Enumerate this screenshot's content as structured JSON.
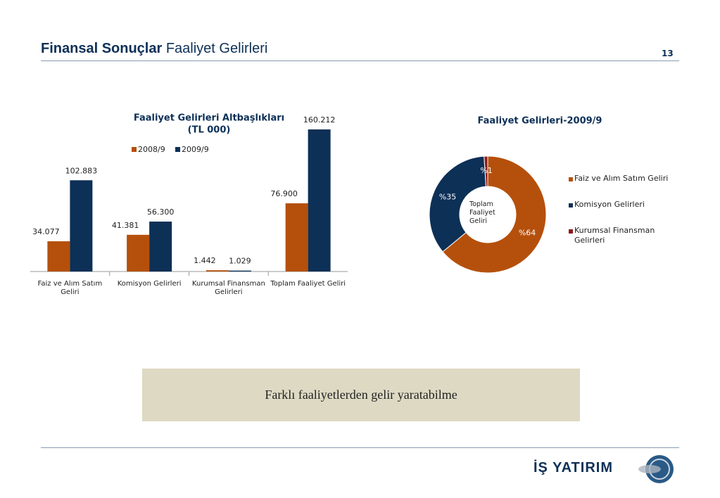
{
  "header": {
    "title_bold": "Finansal Sonuçlar",
    "title_rest": "Faaliyet Gelirleri",
    "page_number": "13"
  },
  "chart_data": [
    {
      "type": "bar",
      "title": "Faaliyet Gelirleri Altbaşlıkları",
      "subtitle": "(TL 000)",
      "categories": [
        "Faiz ve Alım Satım Geliri",
        "Komisyon Gelirleri",
        "Kurumsal Finansman Gelirleri",
        "Toplam Faaliyet Geliri"
      ],
      "series": [
        {
          "name": "2008/9",
          "color": "#b5500c",
          "values": [
            34077,
            41381,
            1442,
            76900
          ],
          "value_labels": [
            "34.077",
            "41.381",
            "1.442",
            "76.900"
          ]
        },
        {
          "name": "2009/9",
          "color": "#0d3057",
          "values": [
            102883,
            56300,
            1029,
            160212
          ],
          "value_labels": [
            "102.883",
            "56.300",
            "1.029",
            "160.212"
          ]
        }
      ]
    },
    {
      "type": "pie",
      "title": "Faaliyet Gelirleri-2009/9",
      "center_label": "Toplam Faaliyet Geliri",
      "categories": [
        "Faiz ve Alım Satım Geliri",
        "Komisyon Gelirleri",
        "Kurumsal Finansman Gelirleri"
      ],
      "values": [
        64,
        35,
        1
      ],
      "value_labels": [
        "%64",
        "%35",
        "%1"
      ],
      "colors": [
        "#b5500c",
        "#0d3057",
        "#8b1a1a"
      ]
    }
  ],
  "callout": "Farklı faaliyetlerden gelir yaratabilme",
  "logo": "İŞ YATIRIM"
}
